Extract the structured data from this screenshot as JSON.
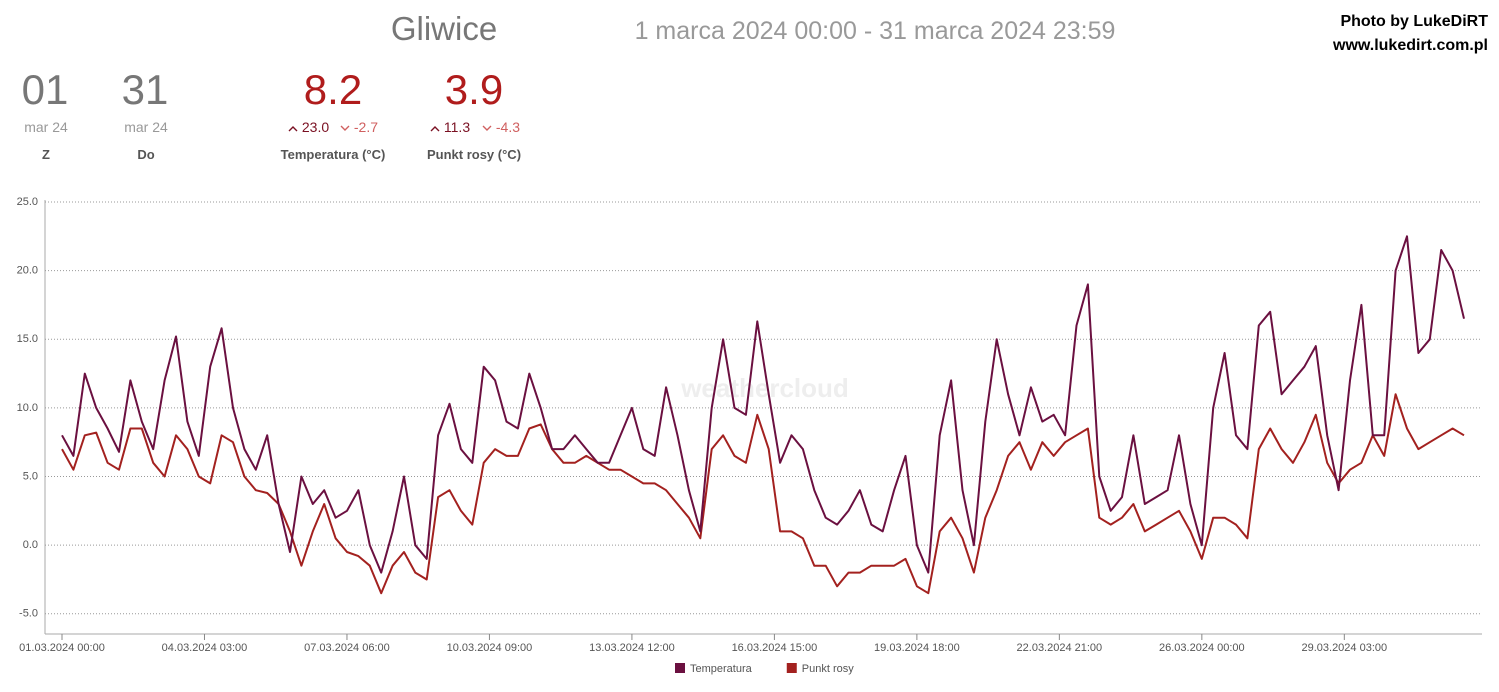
{
  "header": {
    "location": "Gliwice",
    "range": "1 marca 2024 00:00 - 31 marca 2024 23:59",
    "credit": "Photo by LukeDiRT",
    "site": "www.lukedirt.com.pl",
    "watermark": "weathercloud"
  },
  "stats": [
    {
      "value": "01",
      "sub": "mar 24",
      "label": "Z"
    },
    {
      "value": "31",
      "sub": "mar 24",
      "label": "Do"
    },
    {
      "value": "8.2",
      "max": "23.0",
      "min": "-2.7",
      "label": "Temperatura (°C)"
    },
    {
      "value": "3.9",
      "max": "11.3",
      "min": "-4.3",
      "label": "Punkt rosy (°C)"
    }
  ],
  "chart_data": {
    "type": "line",
    "x": [
      "01.03.2024 00:00",
      "01.03.2024 06:00",
      "01.03.2024 12:00",
      "01.03.2024 18:00",
      "02.03.2024 00:00",
      "02.03.2024 06:00",
      "02.03.2024 12:00",
      "02.03.2024 18:00",
      "03.03.2024 00:00",
      "03.03.2024 06:00",
      "03.03.2024 12:00",
      "03.03.2024 18:00",
      "04.03.2024 00:00",
      "04.03.2024 06:00",
      "04.03.2024 12:00",
      "04.03.2024 18:00",
      "05.03.2024 00:00",
      "05.03.2024 06:00",
      "05.03.2024 12:00",
      "05.03.2024 18:00",
      "06.03.2024 00:00",
      "06.03.2024 06:00",
      "06.03.2024 12:00",
      "06.03.2024 18:00",
      "07.03.2024 00:00",
      "07.03.2024 06:00",
      "07.03.2024 12:00",
      "07.03.2024 18:00",
      "08.03.2024 00:00",
      "08.03.2024 06:00",
      "08.03.2024 12:00",
      "08.03.2024 18:00",
      "09.03.2024 00:00",
      "09.03.2024 06:00",
      "09.03.2024 12:00",
      "09.03.2024 18:00",
      "10.03.2024 00:00",
      "10.03.2024 06:00",
      "10.03.2024 12:00",
      "10.03.2024 18:00",
      "11.03.2024 00:00",
      "11.03.2024 06:00",
      "11.03.2024 12:00",
      "11.03.2024 18:00",
      "12.03.2024 00:00",
      "12.03.2024 06:00",
      "12.03.2024 12:00",
      "12.03.2024 18:00",
      "13.03.2024 00:00",
      "13.03.2024 06:00",
      "13.03.2024 12:00",
      "13.03.2024 18:00",
      "14.03.2024 00:00",
      "14.03.2024 06:00",
      "14.03.2024 12:00",
      "14.03.2024 18:00",
      "15.03.2024 00:00",
      "15.03.2024 06:00",
      "15.03.2024 12:00",
      "15.03.2024 18:00",
      "16.03.2024 00:00",
      "16.03.2024 06:00",
      "16.03.2024 12:00",
      "16.03.2024 18:00",
      "17.03.2024 00:00",
      "17.03.2024 06:00",
      "17.03.2024 12:00",
      "17.03.2024 18:00",
      "18.03.2024 00:00",
      "18.03.2024 06:00",
      "18.03.2024 12:00",
      "18.03.2024 18:00",
      "19.03.2024 00:00",
      "19.03.2024 06:00",
      "19.03.2024 12:00",
      "19.03.2024 18:00",
      "20.03.2024 00:00",
      "20.03.2024 06:00",
      "20.03.2024 12:00",
      "20.03.2024 18:00",
      "21.03.2024 00:00",
      "21.03.2024 06:00",
      "21.03.2024 12:00",
      "21.03.2024 18:00",
      "22.03.2024 00:00",
      "22.03.2024 06:00",
      "22.03.2024 12:00",
      "22.03.2024 18:00",
      "23.03.2024 00:00",
      "23.03.2024 06:00",
      "23.03.2024 12:00",
      "23.03.2024 18:00",
      "24.03.2024 00:00",
      "24.03.2024 06:00",
      "24.03.2024 12:00",
      "24.03.2024 18:00",
      "25.03.2024 00:00",
      "25.03.2024 06:00",
      "25.03.2024 12:00",
      "25.03.2024 18:00",
      "26.03.2024 00:00",
      "26.03.2024 06:00",
      "26.03.2024 12:00",
      "26.03.2024 18:00",
      "27.03.2024 00:00",
      "27.03.2024 06:00",
      "27.03.2024 12:00",
      "27.03.2024 18:00",
      "28.03.2024 00:00",
      "28.03.2024 06:00",
      "28.03.2024 12:00",
      "28.03.2024 18:00",
      "29.03.2024 00:00",
      "29.03.2024 06:00",
      "29.03.2024 12:00",
      "29.03.2024 18:00",
      "30.03.2024 00:00",
      "30.03.2024 06:00",
      "30.03.2024 12:00",
      "30.03.2024 18:00",
      "31.03.2024 00:00",
      "31.03.2024 06:00",
      "31.03.2024 12:00",
      "31.03.2024 18:00"
    ],
    "series": [
      {
        "name": "Temperatura",
        "color": "#6b1040",
        "values": [
          8,
          6.5,
          12.5,
          10,
          8.5,
          6.8,
          12,
          9,
          7,
          12,
          15.2,
          9,
          6.5,
          13,
          15.8,
          10,
          7,
          5.5,
          8,
          3,
          -0.5,
          5,
          3,
          4,
          2,
          2.5,
          4,
          0,
          -2,
          1,
          5,
          0,
          -1,
          8,
          10.3,
          7,
          6,
          13,
          12,
          9,
          8.5,
          12.5,
          10,
          7,
          7,
          8,
          7,
          6,
          6,
          8,
          10,
          7,
          6.5,
          11.5,
          8,
          4,
          1,
          10,
          15,
          10,
          9.5,
          16.3,
          11,
          6,
          8,
          7,
          4,
          2,
          1.5,
          2.5,
          4,
          1.5,
          1,
          4,
          6.5,
          0,
          -2,
          8,
          12,
          4,
          0,
          9,
          15,
          11,
          8,
          11.5,
          9,
          9.5,
          8,
          16,
          19,
          5,
          2.5,
          3.5,
          8,
          3,
          3.5,
          4,
          8,
          3,
          0,
          10,
          14,
          8,
          7,
          16,
          17,
          11,
          12,
          13,
          14.5,
          8,
          4,
          12,
          17.5,
          8,
          8,
          20,
          22.5,
          14,
          15,
          21.5,
          20,
          16.5
        ]
      },
      {
        "name": "Punkt rosy",
        "color": "#a3211f",
        "values": [
          7,
          5.5,
          8,
          8.2,
          6,
          5.5,
          8.5,
          8.5,
          6,
          5,
          8,
          7,
          5,
          4.5,
          8,
          7.5,
          5,
          4,
          3.8,
          3,
          1,
          -1.5,
          1,
          3,
          0.5,
          -0.5,
          -0.8,
          -1.5,
          -3.5,
          -1.5,
          -0.5,
          -2,
          -2.5,
          3.5,
          4,
          2.5,
          1.5,
          6,
          7,
          6.5,
          6.5,
          8.5,
          8.8,
          7,
          6,
          6,
          6.5,
          6,
          5.5,
          5.5,
          5,
          4.5,
          4.5,
          4,
          3,
          2,
          0.5,
          7,
          8,
          6.5,
          6,
          9.5,
          7,
          1,
          1,
          0.5,
          -1.5,
          -1.5,
          -3,
          -2,
          -2,
          -1.5,
          -1.5,
          -1.5,
          -1,
          -3,
          -3.5,
          1,
          2,
          0.5,
          -2,
          2,
          4,
          6.5,
          7.5,
          5.5,
          7.5,
          6.5,
          7.5,
          8,
          8.5,
          2,
          1.5,
          2,
          3,
          1,
          1.5,
          2,
          2.5,
          1,
          -1,
          2,
          2,
          1.5,
          0.5,
          7,
          8.5,
          7,
          6,
          7.5,
          9.5,
          6,
          4.5,
          5.5,
          6,
          8,
          6.5,
          11,
          8.5,
          7,
          7.5,
          8,
          8.5,
          8
        ]
      }
    ],
    "ylim": [
      -6.4,
      25
    ],
    "yticks": [
      {
        "value": -5,
        "label": "-5.0"
      },
      {
        "value": 0,
        "label": "0.0"
      },
      {
        "value": 5,
        "label": "5.0"
      },
      {
        "value": 10,
        "label": "10.0"
      },
      {
        "value": 15,
        "label": "15.0"
      },
      {
        "value": 20,
        "label": "20.0"
      },
      {
        "value": 25,
        "label": "25.0"
      }
    ],
    "xticks": [
      "01.03.2024 00:00",
      "04.03.2024 03:00",
      "07.03.2024 06:00",
      "10.03.2024 09:00",
      "13.03.2024 12:00",
      "16.03.2024 15:00",
      "19.03.2024 18:00",
      "22.03.2024 21:00",
      "26.03.2024 00:00",
      "29.03.2024 03:00"
    ],
    "grid": true,
    "legend": "bottom"
  }
}
